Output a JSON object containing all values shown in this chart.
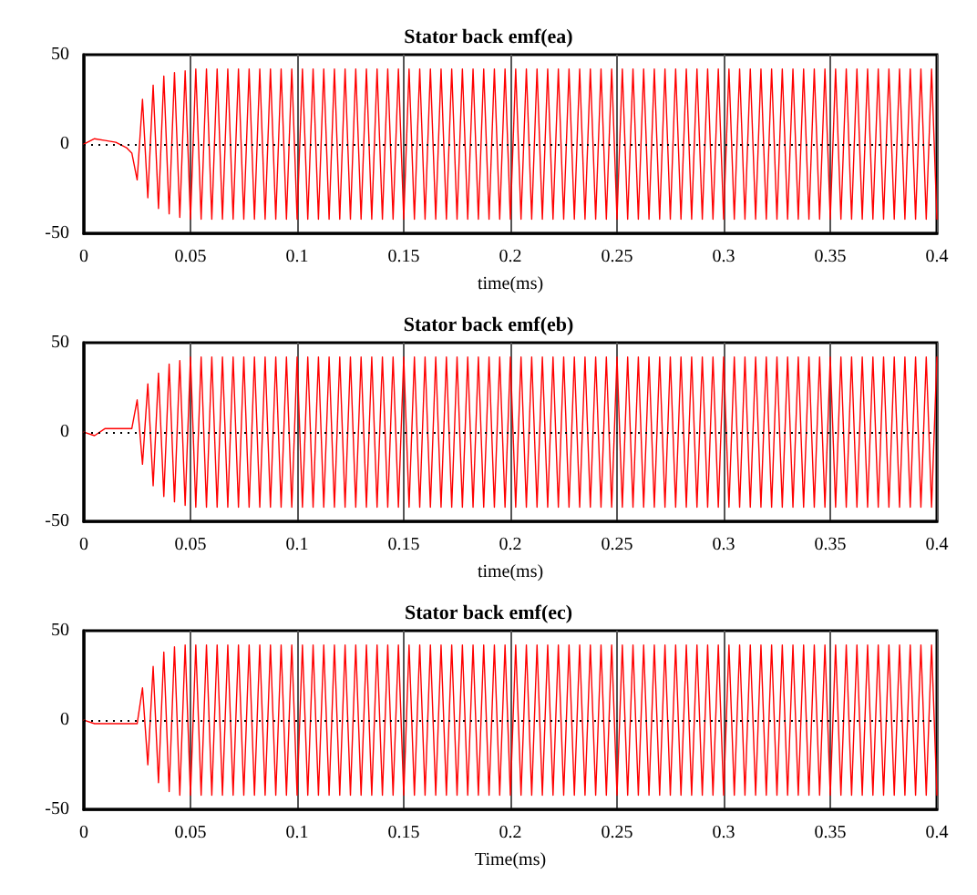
{
  "chart_data": [
    {
      "type": "line",
      "title": "Stator back emf(ea)",
      "xlabel": "time(ms)",
      "xlim": [
        0,
        0.4
      ],
      "xticks": [
        0,
        0.05,
        0.1,
        0.15,
        0.2,
        0.25,
        0.3,
        0.35,
        0.4
      ],
      "ylim": [
        -50,
        50
      ],
      "yticks": [
        -50,
        0,
        50
      ],
      "grid": "x",
      "marker": "none",
      "line_style": "solid",
      "ref_lines": [
        {
          "axis": "y",
          "value": 0,
          "color": "#000000",
          "line_style": "dotted"
        }
      ],
      "series": [
        {
          "color": "#ff0000",
          "x": [
            0,
            0.005,
            0.01,
            0.015,
            0.02,
            0.0225,
            0.025,
            0.0275,
            0.03,
            0.0325,
            0.035,
            0.0375,
            0.04,
            0.0425,
            0.045,
            0.0475,
            0.05,
            0.0525,
            0.055,
            0.0575,
            0.06,
            0.0625,
            0.065,
            0.0675,
            0.07,
            0.0725,
            0.075,
            0.0775,
            0.08,
            0.0825,
            0.085,
            0.0875,
            0.09,
            0.0925,
            0.095,
            0.0975,
            0.1,
            0.1025,
            0.105,
            0.1075,
            0.11,
            0.1125,
            0.115,
            0.1175,
            0.12,
            0.1225,
            0.125,
            0.1275,
            0.13,
            0.1325,
            0.135,
            0.1375,
            0.14,
            0.1425,
            0.145,
            0.1475,
            0.15,
            0.1525,
            0.155,
            0.1575,
            0.16,
            0.1625,
            0.165,
            0.1675,
            0.17,
            0.1725,
            0.175,
            0.1775,
            0.18,
            0.1825,
            0.185,
            0.1875,
            0.19,
            0.1925,
            0.195,
            0.1975,
            0.2,
            0.2025,
            0.205,
            0.2075,
            0.21,
            0.2125,
            0.215,
            0.2175,
            0.22,
            0.2225,
            0.225,
            0.2275,
            0.23,
            0.2325,
            0.235,
            0.2375,
            0.24,
            0.2425,
            0.245,
            0.2475,
            0.25,
            0.2525,
            0.255,
            0.2575,
            0.26,
            0.2625,
            0.265,
            0.2675,
            0.27,
            0.2725,
            0.275,
            0.2775,
            0.28,
            0.2825,
            0.285,
            0.2875,
            0.29,
            0.2925,
            0.295,
            0.2975,
            0.3,
            0.3025,
            0.305,
            0.3075,
            0.31,
            0.3125,
            0.315,
            0.3175,
            0.32,
            0.3225,
            0.325,
            0.3275,
            0.33,
            0.3325,
            0.335,
            0.3375,
            0.34,
            0.3425,
            0.345,
            0.3475,
            0.35,
            0.3525,
            0.355,
            0.3575,
            0.36,
            0.3625,
            0.365,
            0.3675,
            0.37,
            0.3725,
            0.375,
            0.3775,
            0.38,
            0.3825,
            0.385,
            0.3875,
            0.39,
            0.3925,
            0.395,
            0.3975,
            0.4
          ],
          "values": [
            0,
            3,
            2,
            1,
            -2,
            -5,
            -20,
            25,
            -30,
            33,
            -36,
            38,
            -39,
            40,
            -41,
            41,
            -42,
            42,
            -42,
            42,
            -42,
            42,
            -42,
            42,
            -42,
            42,
            -42,
            42,
            -42,
            42,
            -42,
            42,
            -42,
            42,
            -42,
            42,
            -42,
            42,
            -42,
            42,
            -42,
            42,
            -42,
            42,
            -42,
            42,
            -42,
            42,
            -42,
            42,
            -42,
            42,
            -42,
            42,
            -42,
            42,
            -42,
            42,
            -42,
            42,
            -42,
            42,
            -42,
            42,
            -42,
            42,
            -42,
            42,
            -42,
            42,
            -42,
            42,
            -42,
            42,
            -42,
            42,
            -42,
            42,
            -42,
            42,
            -42,
            42,
            -42,
            42,
            -42,
            42,
            -42,
            42,
            -42,
            42,
            -42,
            42,
            -42,
            42,
            -42,
            42,
            -42,
            42,
            -42,
            42,
            -42,
            42,
            -42,
            42,
            -42,
            42,
            -42,
            42,
            -42,
            42,
            -42,
            42,
            -42,
            42,
            -42,
            42,
            -42,
            42,
            -42,
            42,
            -42,
            42,
            -42,
            42,
            -42,
            42,
            -42,
            42,
            -42,
            42,
            -42,
            42,
            -42,
            42,
            -42,
            42,
            -42,
            42,
            -42,
            42,
            -42,
            42,
            -42,
            42,
            -42,
            42,
            -42,
            42,
            -42,
            42,
            -42,
            42,
            -42,
            42,
            -42,
            42,
            -42
          ]
        }
      ]
    },
    {
      "type": "line",
      "title": "Stator back emf(eb)",
      "xlabel": "time(ms)",
      "xlim": [
        0,
        0.4
      ],
      "xticks": [
        0,
        0.05,
        0.1,
        0.15,
        0.2,
        0.25,
        0.3,
        0.35,
        0.4
      ],
      "ylim": [
        -50,
        50
      ],
      "yticks": [
        -50,
        0,
        50
      ],
      "grid": "x",
      "marker": "none",
      "line_style": "solid",
      "ref_lines": [
        {
          "axis": "y",
          "value": 0,
          "color": "#000000",
          "line_style": "dotted"
        }
      ],
      "series": [
        {
          "color": "#ff0000",
          "x": [
            0,
            0.005,
            0.01,
            0.015,
            0.02,
            0.0225,
            0.025,
            0.0275,
            0.03,
            0.0325,
            0.035,
            0.0375,
            0.04,
            0.0425,
            0.045,
            0.0475,
            0.05,
            0.0525,
            0.055,
            0.0575,
            0.06,
            0.0625,
            0.065,
            0.0675,
            0.07,
            0.0725,
            0.075,
            0.0775,
            0.08,
            0.0825,
            0.085,
            0.0875,
            0.09,
            0.0925,
            0.095,
            0.0975,
            0.1,
            0.1025,
            0.105,
            0.1075,
            0.11,
            0.1125,
            0.115,
            0.1175,
            0.12,
            0.1225,
            0.125,
            0.1275,
            0.13,
            0.1325,
            0.135,
            0.1375,
            0.14,
            0.1425,
            0.145,
            0.1475,
            0.15,
            0.1525,
            0.155,
            0.1575,
            0.16,
            0.1625,
            0.165,
            0.1675,
            0.17,
            0.1725,
            0.175,
            0.1775,
            0.18,
            0.1825,
            0.185,
            0.1875,
            0.19,
            0.1925,
            0.195,
            0.1975,
            0.2,
            0.2025,
            0.205,
            0.2075,
            0.21,
            0.2125,
            0.215,
            0.2175,
            0.22,
            0.2225,
            0.225,
            0.2275,
            0.23,
            0.2325,
            0.235,
            0.2375,
            0.24,
            0.2425,
            0.245,
            0.2475,
            0.25,
            0.2525,
            0.255,
            0.2575,
            0.26,
            0.2625,
            0.265,
            0.2675,
            0.27,
            0.2725,
            0.275,
            0.2775,
            0.28,
            0.2825,
            0.285,
            0.2875,
            0.29,
            0.2925,
            0.295,
            0.2975,
            0.3,
            0.3025,
            0.305,
            0.3075,
            0.31,
            0.3125,
            0.315,
            0.3175,
            0.32,
            0.3225,
            0.325,
            0.3275,
            0.33,
            0.3325,
            0.335,
            0.3375,
            0.34,
            0.3425,
            0.345,
            0.3475,
            0.35,
            0.3525,
            0.355,
            0.3575,
            0.36,
            0.3625,
            0.365,
            0.3675,
            0.37,
            0.3725,
            0.375,
            0.3775,
            0.38,
            0.3825,
            0.385,
            0.3875,
            0.39,
            0.3925,
            0.395,
            0.3975,
            0.4
          ],
          "values": [
            0,
            -2,
            2,
            2,
            2,
            2,
            18,
            -18,
            27,
            -30,
            33,
            -36,
            38,
            -39,
            40,
            -41,
            42,
            -42,
            42,
            -42,
            42,
            -42,
            42,
            -42,
            42,
            -42,
            42,
            -42,
            42,
            -42,
            42,
            -42,
            42,
            -42,
            42,
            -42,
            42,
            -42,
            42,
            -42,
            42,
            -42,
            42,
            -42,
            42,
            -42,
            42,
            -42,
            42,
            -42,
            42,
            -42,
            42,
            -42,
            42,
            -42,
            42,
            -42,
            42,
            -42,
            42,
            -42,
            42,
            -42,
            42,
            -42,
            42,
            -42,
            42,
            -42,
            42,
            -42,
            42,
            -42,
            42,
            -42,
            42,
            -42,
            42,
            -42,
            42,
            -42,
            42,
            -42,
            42,
            -42,
            42,
            -42,
            42,
            -42,
            42,
            -42,
            42,
            -42,
            42,
            -42,
            42,
            -42,
            42,
            -42,
            42,
            -42,
            42,
            -42,
            42,
            -42,
            42,
            -42,
            42,
            -42,
            42,
            -42,
            42,
            -42,
            42,
            -42,
            42,
            -42,
            42,
            -42,
            42,
            -42,
            42,
            -42,
            42,
            -42,
            42,
            -42,
            42,
            -42,
            42,
            -42,
            42,
            -42,
            42,
            -42,
            42,
            -42,
            42,
            -42,
            42,
            -42,
            42,
            -42,
            42,
            -42,
            42,
            -42,
            42,
            -42,
            42,
            -42,
            42,
            -42,
            42,
            -42,
            42
          ]
        }
      ]
    },
    {
      "type": "line",
      "title": "Stator back emf(ec)",
      "xlabel": "Time(ms)",
      "xlim": [
        0,
        0.4
      ],
      "xticks": [
        0,
        0.05,
        0.1,
        0.15,
        0.2,
        0.25,
        0.3,
        0.35,
        0.4
      ],
      "ylim": [
        -50,
        50
      ],
      "yticks": [
        -50,
        0,
        50
      ],
      "grid": "x",
      "marker": "none",
      "line_style": "solid",
      "ref_lines": [
        {
          "axis": "y",
          "value": 0,
          "color": "#000000",
          "line_style": "dotted"
        }
      ],
      "series": [
        {
          "color": "#ff0000",
          "x": [
            0,
            0.005,
            0.01,
            0.015,
            0.02,
            0.0225,
            0.025,
            0.0275,
            0.03,
            0.0325,
            0.035,
            0.0375,
            0.04,
            0.0425,
            0.045,
            0.0475,
            0.05,
            0.0525,
            0.055,
            0.0575,
            0.06,
            0.0625,
            0.065,
            0.0675,
            0.07,
            0.0725,
            0.075,
            0.0775,
            0.08,
            0.0825,
            0.085,
            0.0875,
            0.09,
            0.0925,
            0.095,
            0.0975,
            0.1,
            0.1025,
            0.105,
            0.1075,
            0.11,
            0.1125,
            0.115,
            0.1175,
            0.12,
            0.1225,
            0.125,
            0.1275,
            0.13,
            0.1325,
            0.135,
            0.1375,
            0.14,
            0.1425,
            0.145,
            0.1475,
            0.15,
            0.1525,
            0.155,
            0.1575,
            0.16,
            0.1625,
            0.165,
            0.1675,
            0.17,
            0.1725,
            0.175,
            0.1775,
            0.18,
            0.1825,
            0.185,
            0.1875,
            0.19,
            0.1925,
            0.195,
            0.1975,
            0.2,
            0.2025,
            0.205,
            0.2075,
            0.21,
            0.2125,
            0.215,
            0.2175,
            0.22,
            0.2225,
            0.225,
            0.2275,
            0.23,
            0.2325,
            0.235,
            0.2375,
            0.24,
            0.2425,
            0.245,
            0.2475,
            0.25,
            0.2525,
            0.255,
            0.2575,
            0.26,
            0.2625,
            0.265,
            0.2675,
            0.27,
            0.2725,
            0.275,
            0.2775,
            0.28,
            0.2825,
            0.285,
            0.2875,
            0.29,
            0.2925,
            0.295,
            0.2975,
            0.3,
            0.3025,
            0.305,
            0.3075,
            0.31,
            0.3125,
            0.315,
            0.3175,
            0.32,
            0.3225,
            0.325,
            0.3275,
            0.33,
            0.3325,
            0.335,
            0.3375,
            0.34,
            0.3425,
            0.345,
            0.3475,
            0.35,
            0.3525,
            0.355,
            0.3575,
            0.36,
            0.3625,
            0.365,
            0.3675,
            0.37,
            0.3725,
            0.375,
            0.3775,
            0.38,
            0.3825,
            0.385,
            0.3875,
            0.39,
            0.3925,
            0.395,
            0.3975,
            0.4
          ],
          "values": [
            0,
            -2,
            -2,
            -2,
            -2,
            -2,
            -2,
            18,
            -25,
            30,
            -35,
            38,
            -40,
            41,
            -42,
            42,
            -42,
            42,
            -42,
            42,
            -42,
            42,
            -42,
            42,
            -42,
            42,
            -42,
            42,
            -42,
            42,
            -42,
            42,
            -42,
            42,
            -42,
            42,
            -42,
            42,
            -42,
            42,
            -42,
            42,
            -42,
            42,
            -42,
            42,
            -42,
            42,
            -42,
            42,
            -42,
            42,
            -42,
            42,
            -42,
            42,
            -42,
            42,
            -42,
            42,
            -42,
            42,
            -42,
            42,
            -42,
            42,
            -42,
            42,
            -42,
            42,
            -42,
            42,
            -42,
            42,
            -42,
            42,
            -42,
            42,
            -42,
            42,
            -42,
            42,
            -42,
            42,
            -42,
            42,
            -42,
            42,
            -42,
            42,
            -42,
            42,
            -42,
            42,
            -42,
            42,
            -42,
            42,
            -42,
            42,
            -42,
            42,
            -42,
            42,
            -42,
            42,
            -42,
            42,
            -42,
            42,
            -42,
            42,
            -42,
            42,
            -42,
            42,
            -42,
            42,
            -42,
            42,
            -42,
            42,
            -42,
            42,
            -42,
            42,
            -42,
            42,
            -42,
            42,
            -42,
            42,
            -42,
            42,
            -42,
            42,
            -42,
            42,
            -42,
            42,
            -42,
            42,
            -42,
            42,
            -42,
            42,
            -42,
            42,
            -42,
            42,
            -42,
            42,
            -42,
            42,
            -42,
            42,
            -42
          ]
        }
      ]
    }
  ]
}
